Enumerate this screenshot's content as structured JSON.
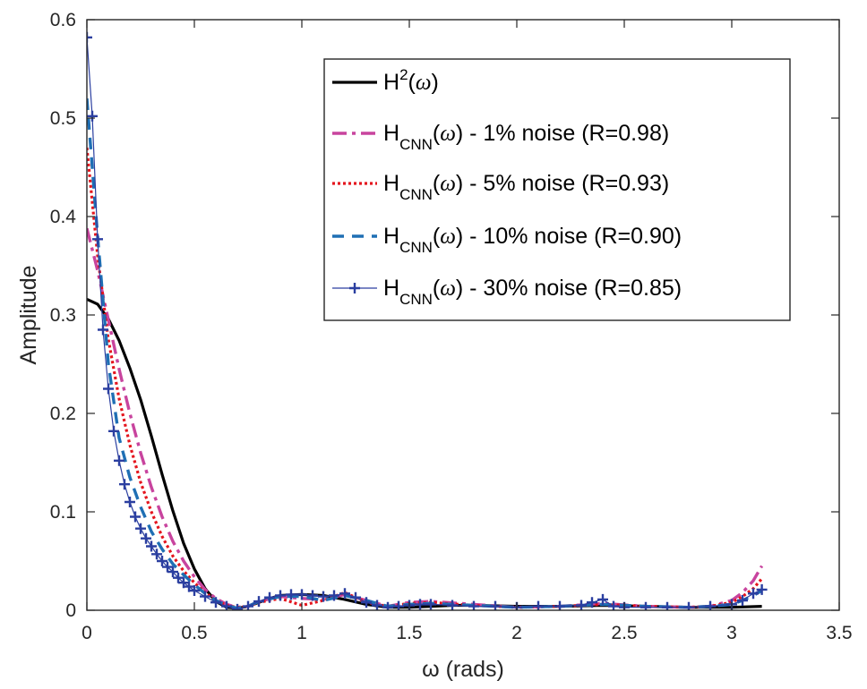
{
  "chart_data": {
    "type": "line",
    "xlabel": "ω (rads)",
    "ylabel": "Amplitude",
    "xlim": [
      0,
      3.5
    ],
    "ylim": [
      0,
      0.6
    ],
    "xticks": [
      "0",
      "0.5",
      "1",
      "1.5",
      "2",
      "2.5",
      "3",
      "3.5"
    ],
    "yticks": [
      "0",
      "0.1",
      "0.2",
      "0.3",
      "0.4",
      "0.5",
      "0.6"
    ],
    "xtick_values": [
      0,
      0.5,
      1,
      1.5,
      2,
      2.5,
      3,
      3.5
    ],
    "ytick_values": [
      0,
      0.1,
      0.2,
      0.3,
      0.4,
      0.5,
      0.6
    ],
    "grid": false,
    "legend_position": "top-right",
    "series": [
      {
        "name": "H²(ω)",
        "legend": {
          "main": "H",
          "sup": "2",
          "var": "ω",
          "rest": ""
        },
        "color": "#000000",
        "style": "solid",
        "x": [
          0,
          0.05,
          0.1,
          0.15,
          0.2,
          0.25,
          0.3,
          0.35,
          0.4,
          0.45,
          0.5,
          0.55,
          0.6,
          0.65,
          0.7,
          0.75,
          0.8,
          0.85,
          0.9,
          1.0,
          1.1,
          1.2,
          1.3,
          1.4,
          1.5,
          1.6,
          1.7,
          1.8,
          2.0,
          2.2,
          2.4,
          2.6,
          2.8,
          3.0,
          3.14
        ],
        "y": [
          0.316,
          0.311,
          0.296,
          0.274,
          0.246,
          0.214,
          0.177,
          0.138,
          0.101,
          0.068,
          0.042,
          0.022,
          0.009,
          0.003,
          0.002,
          0.004,
          0.008,
          0.012,
          0.015,
          0.016,
          0.015,
          0.011,
          0.006,
          0.003,
          0.003,
          0.004,
          0.005,
          0.005,
          0.004,
          0.004,
          0.005,
          0.004,
          0.003,
          0.003,
          0.004
        ]
      },
      {
        "name": "H_CNN(ω) - 1% noise (R=0.98)",
        "legend": {
          "main": "H",
          "sub": "CNN",
          "var": "ω",
          "rest": " - 1% noise (R=0.98)"
        },
        "color": "#c8449e",
        "style": "dashdot",
        "x": [
          0,
          0.05,
          0.1,
          0.15,
          0.2,
          0.25,
          0.3,
          0.35,
          0.4,
          0.45,
          0.5,
          0.55,
          0.6,
          0.65,
          0.7,
          0.75,
          0.8,
          0.9,
          1.0,
          1.1,
          1.2,
          1.3,
          1.4,
          1.5,
          1.6,
          1.8,
          2.0,
          2.2,
          2.4,
          2.6,
          2.8,
          2.9,
          3.0,
          3.05,
          3.1,
          3.14
        ],
        "y": [
          0.388,
          0.345,
          0.295,
          0.245,
          0.2,
          0.16,
          0.125,
          0.095,
          0.07,
          0.05,
          0.034,
          0.021,
          0.012,
          0.006,
          0.003,
          0.004,
          0.009,
          0.014,
          0.012,
          0.011,
          0.016,
          0.01,
          0.004,
          0.008,
          0.009,
          0.006,
          0.003,
          0.004,
          0.007,
          0.004,
          0.003,
          0.004,
          0.01,
          0.018,
          0.03,
          0.045
        ]
      },
      {
        "name": "H_CNN(ω) - 5% noise (R=0.93)",
        "legend": {
          "main": "H",
          "sub": "CNN",
          "var": "ω",
          "rest": " - 5% noise (R=0.93)"
        },
        "color": "#e4151d",
        "style": "dotted",
        "x": [
          0,
          0.05,
          0.1,
          0.15,
          0.2,
          0.25,
          0.3,
          0.35,
          0.4,
          0.45,
          0.5,
          0.55,
          0.6,
          0.65,
          0.7,
          0.75,
          0.8,
          0.9,
          1.0,
          1.1,
          1.2,
          1.3,
          1.4,
          1.5,
          1.6,
          1.8,
          2.0,
          2.2,
          2.4,
          2.6,
          2.8,
          2.9,
          3.0,
          3.05,
          3.1,
          3.14
        ],
        "y": [
          0.47,
          0.36,
          0.275,
          0.215,
          0.168,
          0.13,
          0.1,
          0.075,
          0.055,
          0.04,
          0.028,
          0.018,
          0.01,
          0.005,
          0.003,
          0.004,
          0.008,
          0.012,
          0.005,
          0.01,
          0.018,
          0.008,
          0.004,
          0.007,
          0.008,
          0.005,
          0.003,
          0.004,
          0.006,
          0.004,
          0.003,
          0.004,
          0.008,
          0.014,
          0.022,
          0.032
        ]
      },
      {
        "name": "H_CNN(ω) - 10% noise (R=0.90)",
        "legend": {
          "main": "H",
          "sub": "CNN",
          "var": "ω",
          "rest": " - 10% noise (R=0.90)"
        },
        "color": "#1f6fb4",
        "style": "dashed",
        "x": [
          0,
          0.05,
          0.1,
          0.15,
          0.2,
          0.25,
          0.3,
          0.35,
          0.4,
          0.45,
          0.5,
          0.55,
          0.6,
          0.65,
          0.7,
          0.75,
          0.8,
          0.9,
          1.0,
          1.1,
          1.2,
          1.3,
          1.4,
          1.5,
          1.6,
          1.8,
          2.0,
          2.2,
          2.4,
          2.6,
          2.8,
          2.9,
          3.0,
          3.05,
          3.1,
          3.14
        ],
        "y": [
          0.52,
          0.38,
          0.25,
          0.175,
          0.135,
          0.105,
          0.08,
          0.062,
          0.047,
          0.036,
          0.026,
          0.017,
          0.01,
          0.005,
          0.002,
          0.004,
          0.009,
          0.014,
          0.014,
          0.01,
          0.015,
          0.01,
          0.004,
          0.006,
          0.007,
          0.005,
          0.003,
          0.004,
          0.006,
          0.004,
          0.003,
          0.004,
          0.006,
          0.01,
          0.015,
          0.02
        ]
      },
      {
        "name": "H_CNN(ω) - 30% noise (R=0.85)",
        "legend": {
          "main": "H",
          "sub": "CNN",
          "var": "ω",
          "rest": " - 30% noise (R=0.85)"
        },
        "color": "#2b3fa0",
        "style": "plus",
        "x": [
          0,
          0.025,
          0.05,
          0.075,
          0.1,
          0.125,
          0.15,
          0.175,
          0.2,
          0.225,
          0.25,
          0.275,
          0.3,
          0.325,
          0.35,
          0.375,
          0.4,
          0.425,
          0.45,
          0.475,
          0.5,
          0.55,
          0.6,
          0.65,
          0.7,
          0.75,
          0.8,
          0.85,
          0.9,
          0.95,
          1.0,
          1.05,
          1.1,
          1.15,
          1.2,
          1.25,
          1.3,
          1.35,
          1.4,
          1.45,
          1.5,
          1.55,
          1.6,
          1.7,
          1.8,
          1.9,
          2.0,
          2.1,
          2.2,
          2.3,
          2.35,
          2.4,
          2.45,
          2.5,
          2.6,
          2.7,
          2.8,
          2.9,
          3.0,
          3.05,
          3.1,
          3.14
        ],
        "y": [
          0.582,
          0.502,
          0.377,
          0.285,
          0.225,
          0.182,
          0.152,
          0.128,
          0.11,
          0.095,
          0.083,
          0.073,
          0.065,
          0.057,
          0.05,
          0.044,
          0.039,
          0.033,
          0.028,
          0.024,
          0.02,
          0.014,
          0.008,
          0.004,
          0.001,
          0.004,
          0.009,
          0.013,
          0.015,
          0.016,
          0.016,
          0.015,
          0.014,
          0.015,
          0.017,
          0.013,
          0.008,
          0.005,
          0.003,
          0.004,
          0.005,
          0.006,
          0.006,
          0.005,
          0.004,
          0.004,
          0.003,
          0.004,
          0.004,
          0.005,
          0.008,
          0.011,
          0.004,
          0.003,
          0.003,
          0.003,
          0.003,
          0.004,
          0.006,
          0.01,
          0.017,
          0.021
        ]
      }
    ]
  }
}
